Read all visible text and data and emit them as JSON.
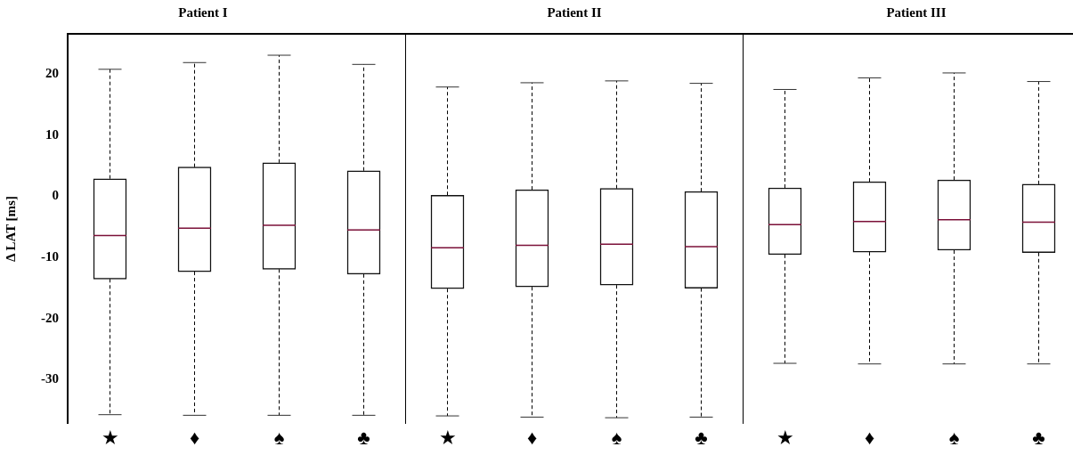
{
  "chart_data": [
    {
      "type": "box",
      "title": "Patient I",
      "ylabel": "Δ LAT [ms]",
      "categories": [
        "★",
        "♦",
        "♠",
        "♣"
      ],
      "ylim": [
        -37.2,
        26.6
      ],
      "yticks": [
        -30,
        -20,
        -10,
        0,
        10,
        20
      ],
      "grid": false,
      "legend": false,
      "boxes": [
        {
          "low": -35.7,
          "q1": -13.5,
          "median": -6.4,
          "q3": 2.9,
          "high": 20.8
        },
        {
          "low": -35.8,
          "q1": -12.3,
          "median": -5.2,
          "q3": 4.8,
          "high": 21.9
        },
        {
          "low": -35.8,
          "q1": -11.9,
          "median": -4.7,
          "q3": 5.5,
          "high": 23.1
        },
        {
          "low": -35.8,
          "q1": -12.7,
          "median": -5.5,
          "q3": 4.2,
          "high": 21.6
        }
      ]
    },
    {
      "type": "box",
      "title": "Patient II",
      "categories": [
        "★",
        "♦",
        "♠",
        "♣"
      ],
      "ylim": [
        -37.2,
        26.6
      ],
      "yticks": [
        -30,
        -20,
        -10,
        0,
        10,
        20
      ],
      "tick_labels": "x",
      "grid": false,
      "legend": false,
      "boxes": [
        {
          "low": -35.9,
          "q1": -15.1,
          "median": -8.4,
          "q3": 0.2,
          "high": 17.9
        },
        {
          "low": -36.1,
          "q1": -14.8,
          "median": -8.0,
          "q3": 1.1,
          "high": 18.6
        },
        {
          "low": -36.2,
          "q1": -14.5,
          "median": -7.8,
          "q3": 1.3,
          "high": 18.9
        },
        {
          "low": -36.1,
          "q1": -15.0,
          "median": -8.2,
          "q3": 0.8,
          "high": 18.5
        }
      ]
    },
    {
      "type": "box",
      "title": "Patient III",
      "categories": [
        "★",
        "♦",
        "♠",
        "♣"
      ],
      "ylim": [
        -37.2,
        26.6
      ],
      "yticks": [
        -30,
        -20,
        -10,
        0,
        10,
        20
      ],
      "tick_labels": "x",
      "grid": false,
      "legend": false,
      "boxes": [
        {
          "low": -27.3,
          "q1": -9.5,
          "median": -4.6,
          "q3": 1.4,
          "high": 17.5
        },
        {
          "low": -27.4,
          "q1": -9.1,
          "median": -4.1,
          "q3": 2.4,
          "high": 19.4
        },
        {
          "low": -27.4,
          "q1": -8.8,
          "median": -3.8,
          "q3": 2.7,
          "high": 20.2
        },
        {
          "low": -27.4,
          "q1": -9.2,
          "median": -4.2,
          "q3": 2.0,
          "high": 18.8
        }
      ]
    }
  ]
}
